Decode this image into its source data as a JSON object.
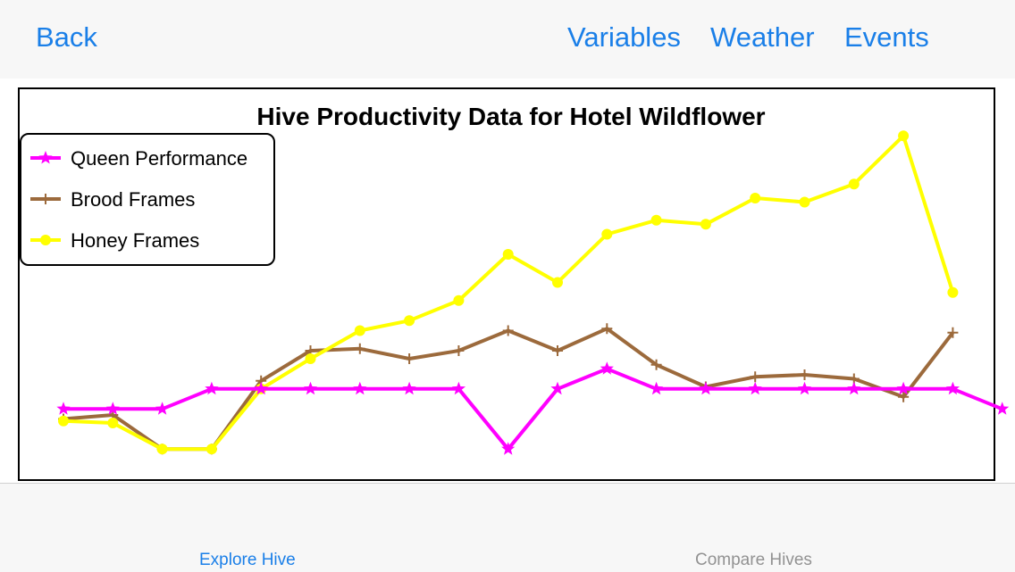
{
  "navbar": {
    "back_label": "Back",
    "variables_label": "Variables",
    "weather_label": "Weather",
    "events_label": "Events"
  },
  "tabbar": {
    "tabs": [
      {
        "label": "Explore Hive",
        "active": true
      },
      {
        "label": "Compare Hives",
        "active": false
      }
    ]
  },
  "colors": {
    "accent": "#1a7fe8",
    "inactive": "#929292"
  },
  "chart_data": {
    "type": "line",
    "title": "Hive Productivity Data for Hotel Wildflower",
    "legend_position": "top-left",
    "grid": false,
    "x": [
      1,
      2,
      3,
      4,
      5,
      6,
      7,
      8,
      9,
      10,
      11,
      12,
      13,
      14,
      15,
      16,
      17,
      18,
      19,
      20
    ],
    "ylim": [
      0,
      18
    ],
    "series": [
      {
        "name": "Queen Performance",
        "color": "#ff00ff",
        "marker": "star",
        "values": [
          3.5,
          3.5,
          3.5,
          4.5,
          4.5,
          4.5,
          4.5,
          4.5,
          4.5,
          1.5,
          4.5,
          5.5,
          4.5,
          4.5,
          4.5,
          4.5,
          4.5,
          4.5,
          4.5,
          3.5
        ]
      },
      {
        "name": "Brood Frames",
        "color": "#9c6a3c",
        "marker": "plus",
        "values": [
          3.0,
          3.2,
          1.5,
          1.5,
          4.9,
          6.4,
          6.5,
          6.0,
          6.4,
          7.4,
          6.4,
          7.5,
          5.7,
          4.6,
          5.1,
          5.2,
          5.0,
          4.1,
          7.3,
          null
        ]
      },
      {
        "name": "Honey Frames",
        "color": "#ffff00",
        "marker": "circle",
        "values": [
          2.9,
          2.8,
          1.5,
          1.5,
          4.5,
          6.0,
          7.4,
          7.9,
          8.9,
          11.2,
          9.8,
          12.2,
          12.9,
          12.7,
          14.0,
          13.8,
          14.7,
          17.1,
          9.3,
          null
        ]
      }
    ]
  }
}
